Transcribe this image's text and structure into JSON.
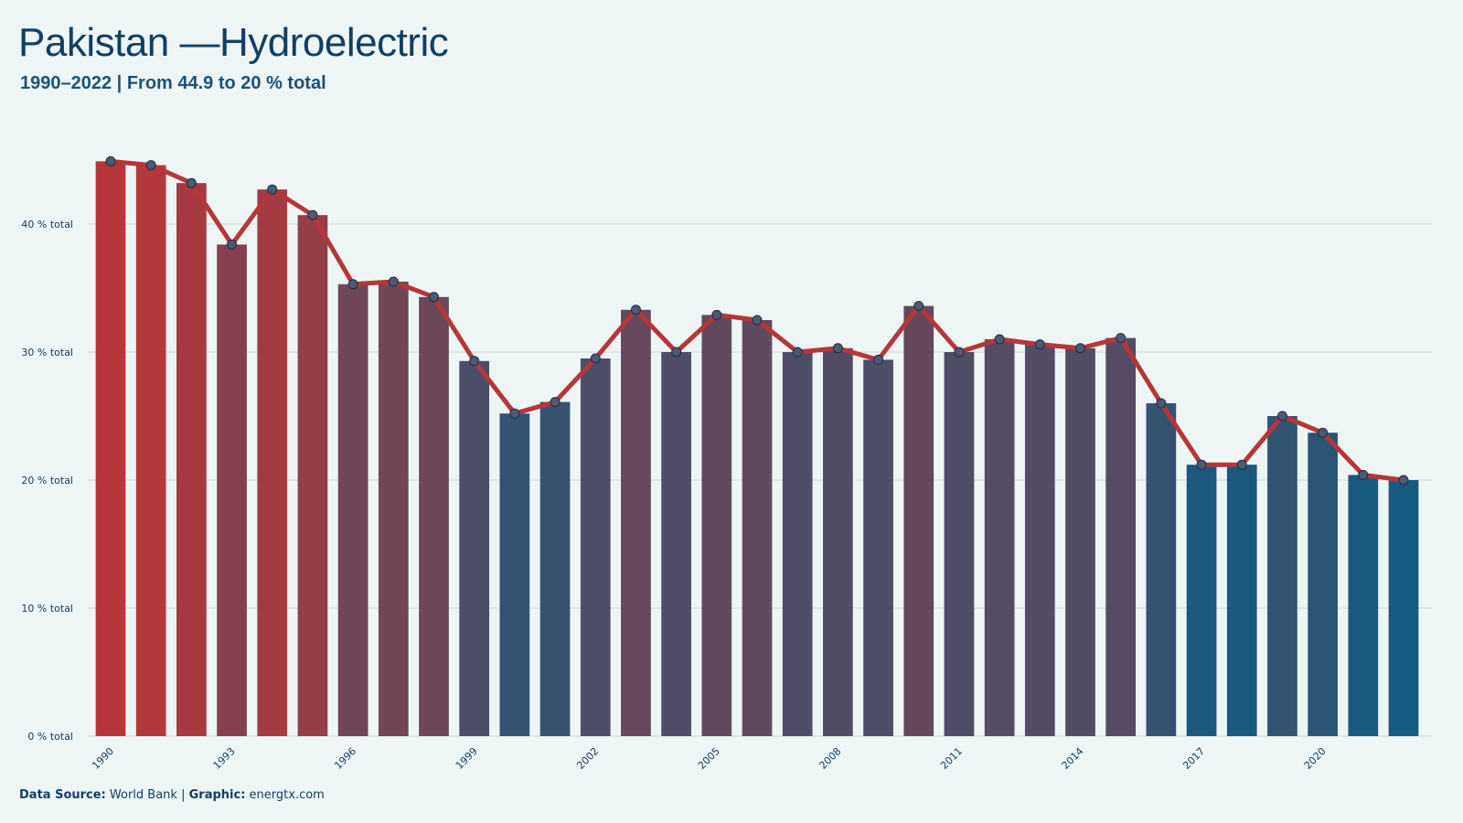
{
  "title": "Pakistan —Hydroelectric",
  "subtitle": "1990–2022 | From 44.9 to 20 % total",
  "footer": {
    "source_label": "Data Source:",
    "source_value": "World Bank",
    "separator": "|",
    "graphic_label": "Graphic:",
    "graphic_value": "energtx.com"
  },
  "colors": {
    "high": "#b5373a",
    "low": "#155a80",
    "line": "#b5373a",
    "point_fill": "#4d5a72",
    "point_stroke": "#1b2f45",
    "grid": "#cfd9dc",
    "axis_text": "#123f63"
  },
  "chart_data": {
    "type": "bar",
    "grid": true,
    "ylim": [
      0,
      46
    ],
    "y_ticks": [
      0,
      10,
      20,
      30,
      40
    ],
    "y_tick_labels": [
      "0 % total",
      "10 % total",
      "20 % total",
      "30 % total",
      "40 % total"
    ],
    "x_tick_labels": [
      "1990",
      "1993",
      "1996",
      "1999",
      "2002",
      "2005",
      "2008",
      "2011",
      "2014",
      "2017",
      "2020"
    ],
    "categories": [
      1990,
      1991,
      1992,
      1993,
      1994,
      1995,
      1996,
      1997,
      1998,
      1999,
      2000,
      2001,
      2002,
      2003,
      2004,
      2005,
      2006,
      2007,
      2008,
      2009,
      2010,
      2011,
      2012,
      2013,
      2014,
      2015,
      2016,
      2017,
      2018,
      2019,
      2020,
      2021,
      2022
    ],
    "values": [
      44.9,
      44.6,
      43.2,
      38.4,
      42.7,
      40.7,
      35.3,
      35.5,
      34.3,
      29.3,
      25.2,
      26.1,
      29.5,
      33.3,
      30.0,
      32.9,
      32.5,
      30.0,
      30.3,
      29.4,
      33.6,
      30.0,
      31.0,
      30.6,
      30.3,
      31.1,
      26.0,
      21.2,
      21.2,
      25.0,
      23.7,
      20.4,
      20.0
    ]
  }
}
